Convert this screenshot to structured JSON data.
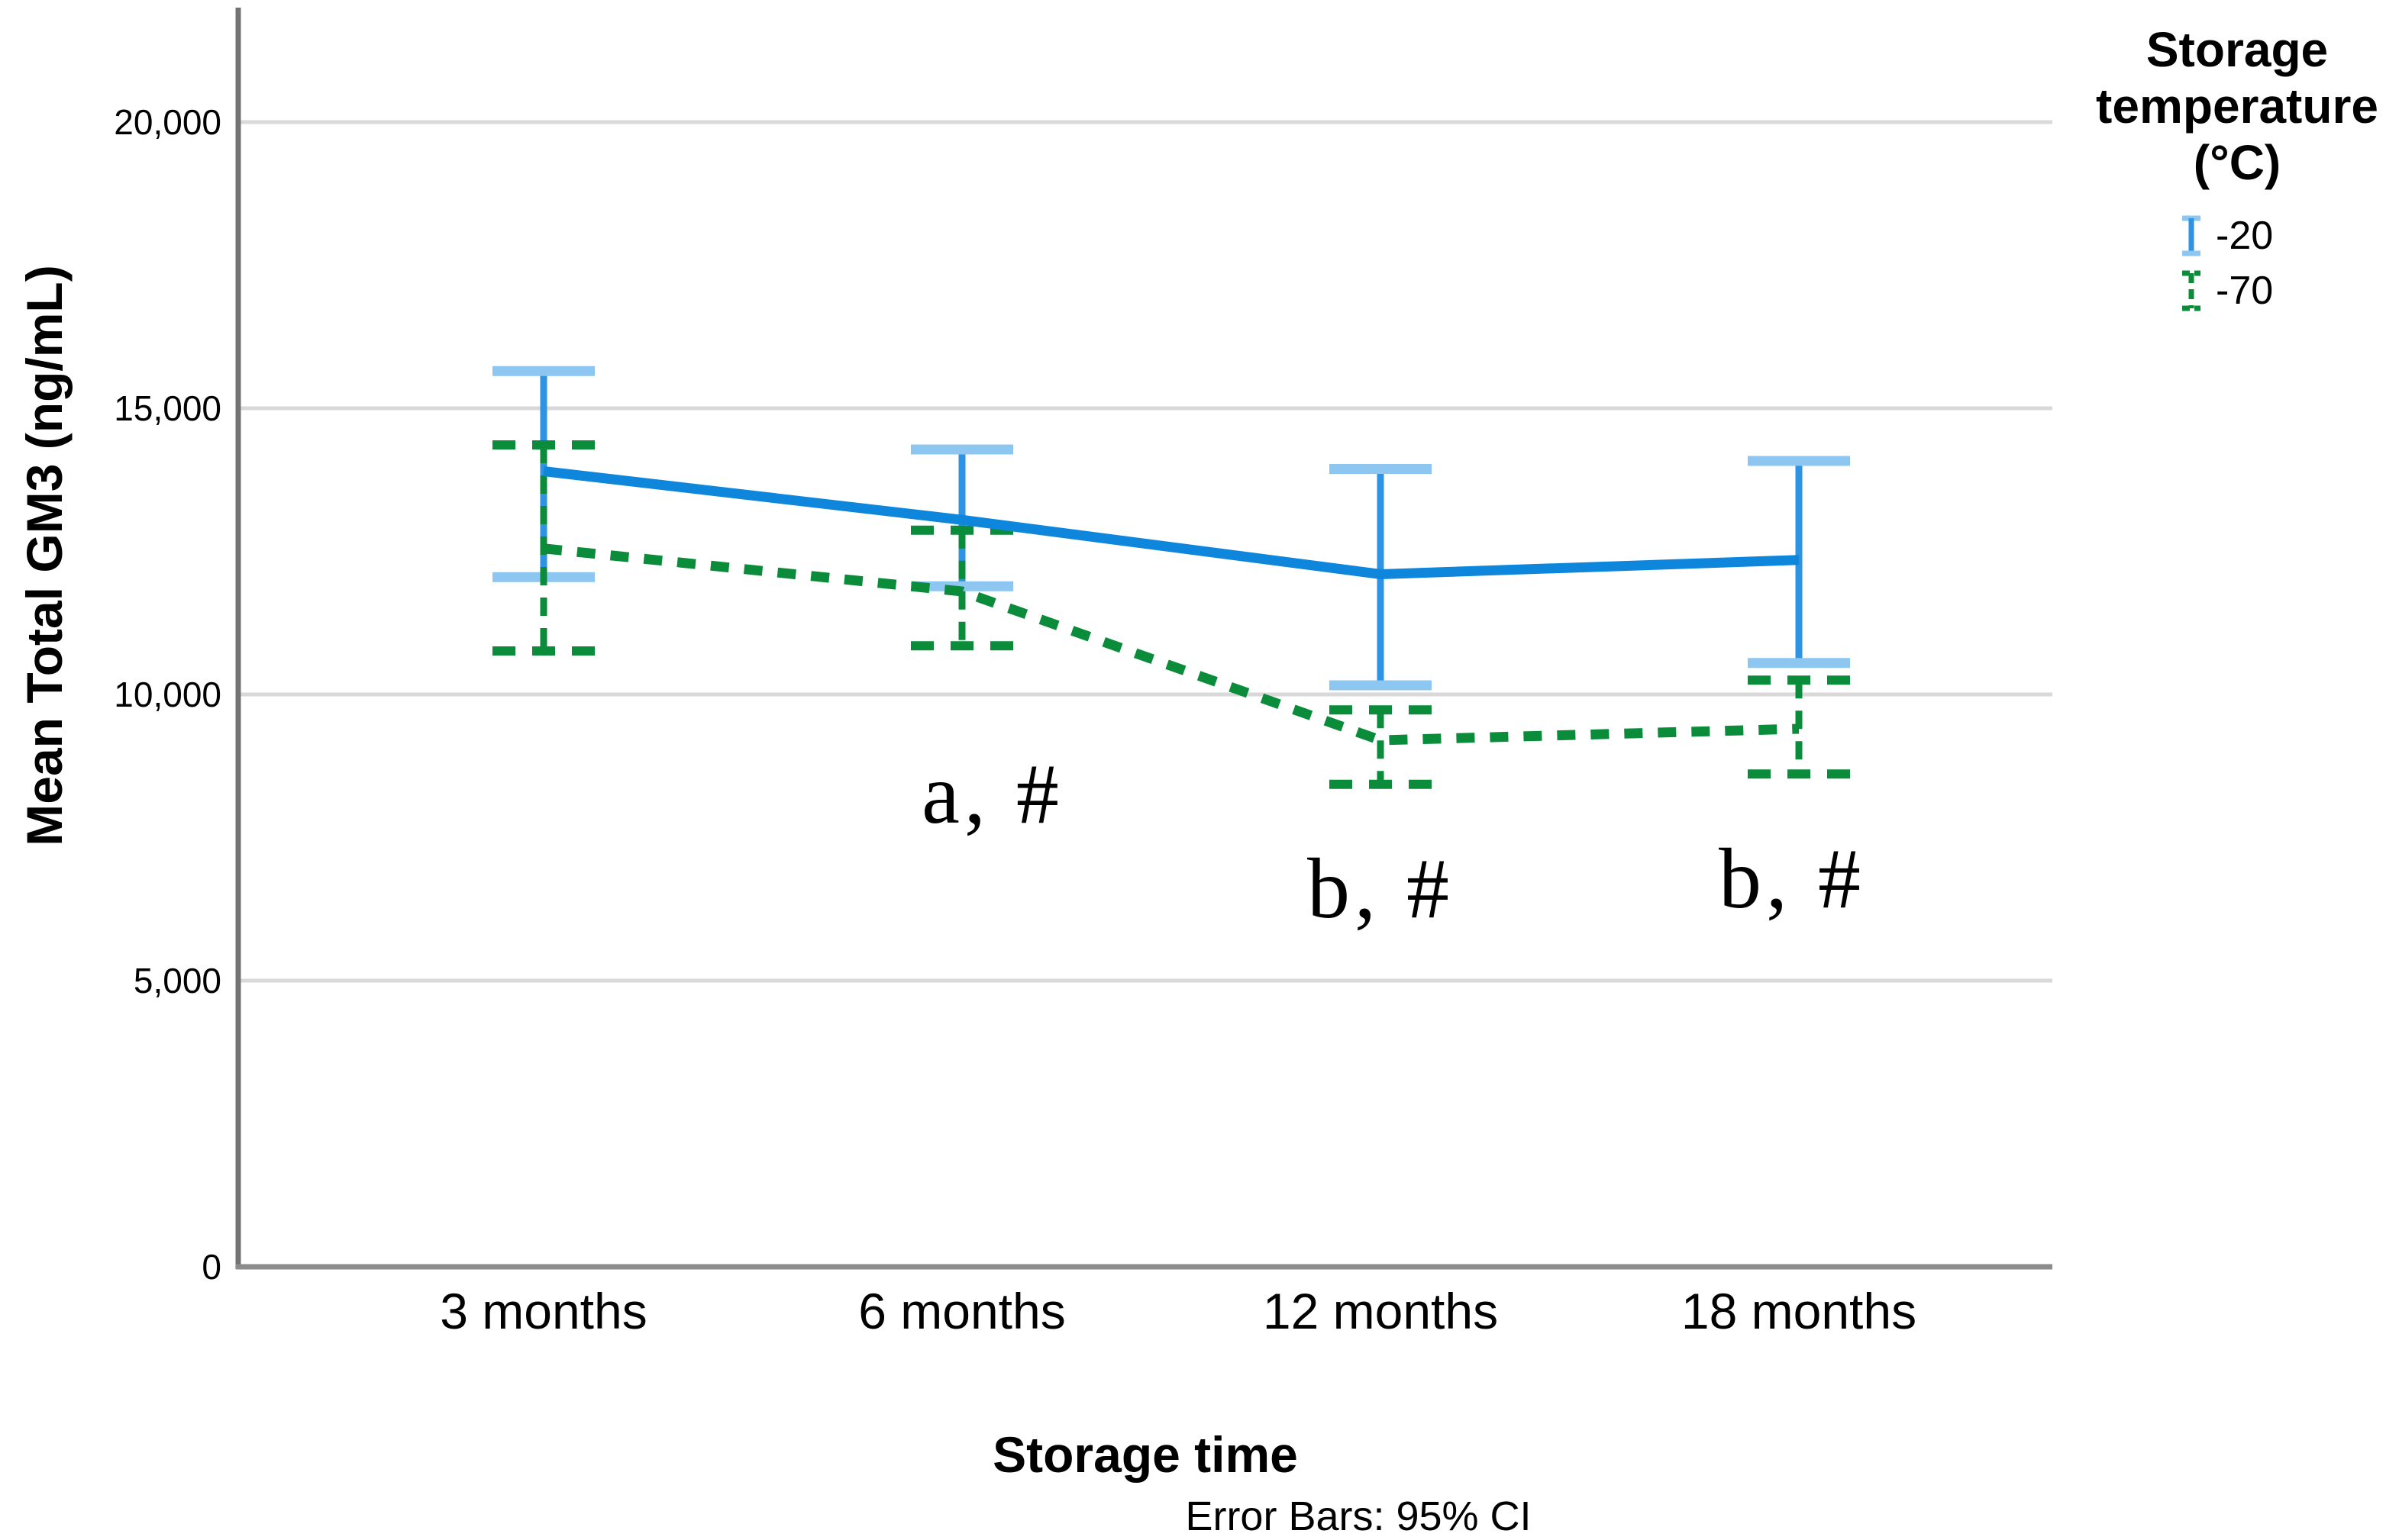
{
  "figure": {
    "caption": "Error Bars: 95% CI"
  },
  "chart_data": {
    "type": "line",
    "title": "",
    "xlabel": "Storage time",
    "ylabel": "Mean Total GM3 (ng/mL)",
    "caption": "Error Bars: 95% CI",
    "categories": [
      "3 months",
      "6 months",
      "12 months",
      "18 months"
    ],
    "ytick_values": [
      0,
      5000,
      10000,
      15000,
      20000
    ],
    "ytick_labels": [
      "0",
      "5,000",
      "10,000",
      "15,000",
      "20,000"
    ],
    "ylim": [
      0,
      22000
    ],
    "grid": true,
    "error_bars": "95% CI",
    "legend": {
      "position": "top-right",
      "title_lines": [
        "Storage",
        "temperature",
        "(°C)"
      ]
    },
    "series": [
      {
        "name": "-20",
        "style": "solid",
        "color": "#0d86dc",
        "stem_color": "#2e93e3",
        "cap_color": "#8cc6f1",
        "values": [
          13900,
          13050,
          12100,
          12350
        ],
        "ci_high": [
          15650,
          14280,
          13940,
          14080
        ],
        "ci_low": [
          12050,
          11890,
          10160,
          10550
        ]
      },
      {
        "name": "-70",
        "style": "dashed",
        "color": "#0b8c3b",
        "stem_color": "#0b8c3b",
        "cap_color": "#0b8c3b",
        "values": [
          12550,
          11800,
          9200,
          9400
        ],
        "ci_high": [
          14360,
          12870,
          9730,
          10250
        ],
        "ci_low": [
          10760,
          10850,
          8430,
          8610
        ]
      }
    ],
    "annotations": [
      {
        "text": "a, #",
        "category_index": 1,
        "dx": 40,
        "value": 8250
      },
      {
        "text": "b, #",
        "category_index": 2,
        "dx": 0,
        "value": 6600
      },
      {
        "text": "b, #",
        "category_index": 3,
        "dx": -9,
        "value": 6770
      }
    ],
    "colors": {
      "grid": "#d9d9d9",
      "axis_x": "#8c8c8c",
      "axis_y": "#737373",
      "background": "#ffffff"
    }
  }
}
